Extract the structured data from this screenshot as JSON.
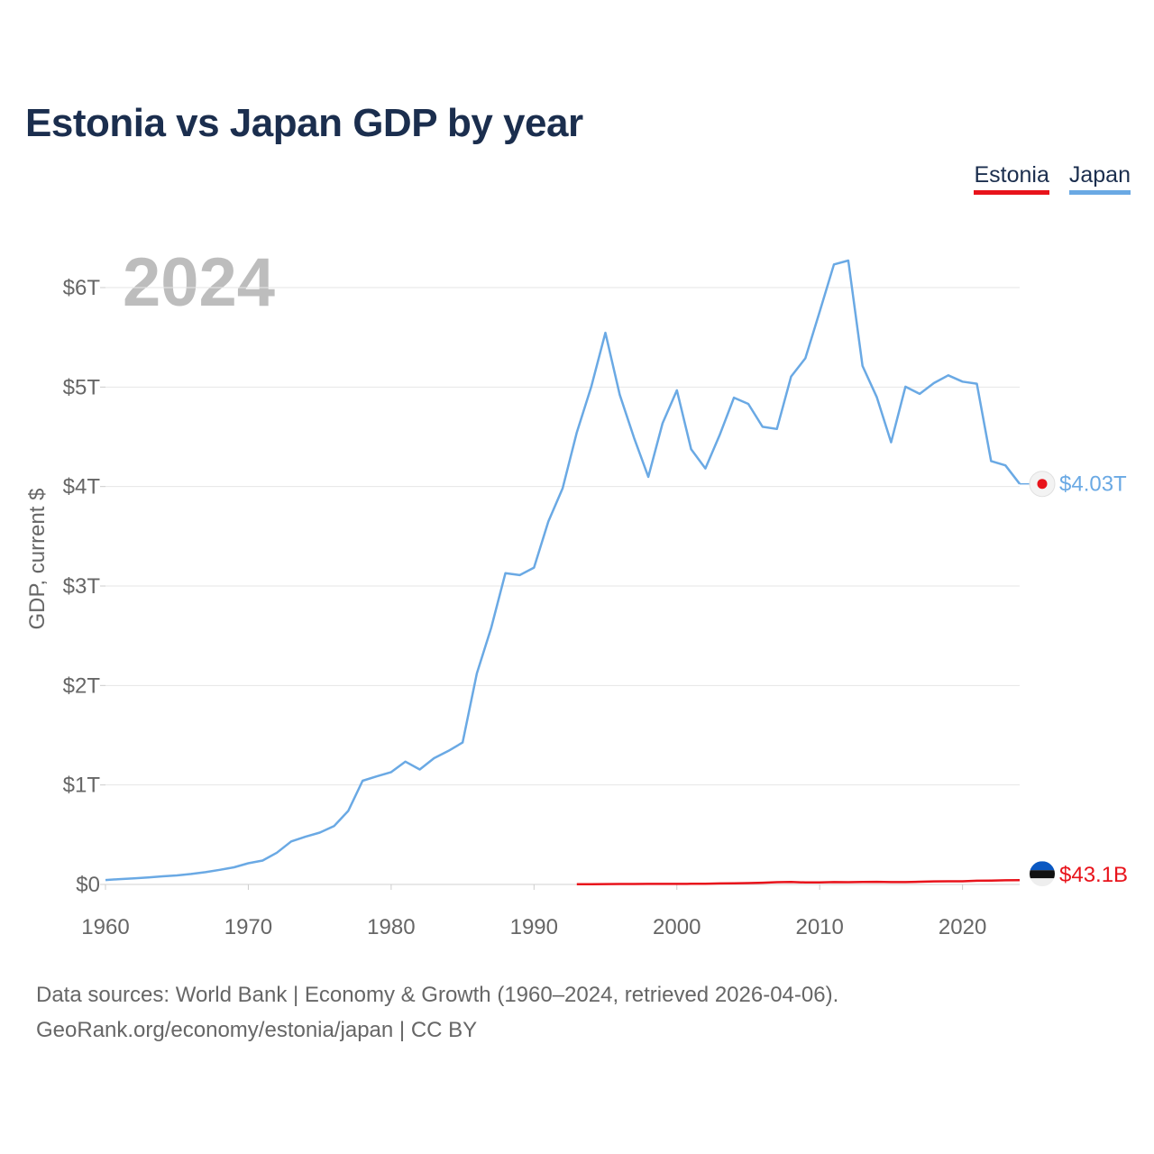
{
  "chart_data": {
    "type": "line",
    "title": "Estonia vs Japan GDP by year",
    "ylabel": "GDP, current $",
    "xlabel": "",
    "current_year": "2024",
    "xlim": [
      1960,
      2024
    ],
    "ylim": [
      0,
      6000000000000
    ],
    "x_ticks": [
      1960,
      1970,
      1980,
      1990,
      2000,
      2010,
      2020
    ],
    "x_tick_labels": [
      "1960",
      "1970",
      "1980",
      "1990",
      "2000",
      "2010",
      "2020"
    ],
    "y_ticks": [
      0,
      1000000000000,
      2000000000000,
      3000000000000,
      4000000000000,
      5000000000000,
      6000000000000
    ],
    "y_tick_labels": [
      "$0",
      "$1T",
      "$2T",
      "$3T",
      "$4T",
      "$5T",
      "$6T"
    ],
    "series": [
      {
        "name": "Japan",
        "color": "#6aa9e4",
        "end_label": "$4.03T",
        "start_year": 1960,
        "values": [
          0.0443,
          0.0537,
          0.0608,
          0.0695,
          0.0819,
          0.091,
          0.105,
          0.1235,
          0.1469,
          0.1721,
          0.2126,
          0.2404,
          0.3187,
          0.4324,
          0.4798,
          0.5211,
          0.586,
          0.7399,
          1.042,
          1.087,
          1.129,
          1.234,
          1.156,
          1.269,
          1.342,
          1.427,
          2.121,
          2.579,
          3.13,
          3.11,
          3.185,
          3.648,
          3.981,
          4.544,
          4.999,
          5.546,
          4.923,
          4.492,
          4.098,
          4.636,
          4.968,
          4.375,
          4.182,
          4.519,
          4.893,
          4.831,
          4.601,
          4.579,
          5.106,
          5.289,
          5.759,
          6.233,
          6.272,
          5.212,
          4.897,
          4.445,
          5.004,
          4.931,
          5.04,
          5.118,
          5.055,
          5.034,
          4.256,
          4.213,
          4.027
        ]
      },
      {
        "name": "Estonia",
        "color": "#e8131b",
        "end_label": "$43.1B",
        "start_year": 1993,
        "values": [
          0.00167,
          0.00236,
          0.00372,
          0.00445,
          0.00476,
          0.00558,
          0.00573,
          0.00573,
          0.00632,
          0.00738,
          0.00993,
          0.01209,
          0.01393,
          0.017,
          0.02256,
          0.0241,
          0.01963,
          0.01978,
          0.02348,
          0.02308,
          0.02511,
          0.0267,
          0.02314,
          0.02379,
          0.02694,
          0.03075,
          0.03141,
          0.03151,
          0.03682,
          0.03807,
          0.04155,
          0.0431
        ]
      }
    ],
    "legend": [
      "Estonia",
      "Japan"
    ],
    "legend_position": "top-right"
  },
  "legend_items": {
    "estonia": "Estonia",
    "japan": "Japan"
  },
  "source": {
    "line1": "Data sources: World Bank | Economy & Growth (1960–2024, retrieved 2026-04-06).",
    "line2": "GeoRank.org/economy/estonia/japan | CC BY"
  },
  "colors": {
    "title": "#1b2e4e",
    "japan": "#6aa9e4",
    "estonia": "#e8131b",
    "grid": "#e6e6e6",
    "axis_text": "#666666"
  }
}
